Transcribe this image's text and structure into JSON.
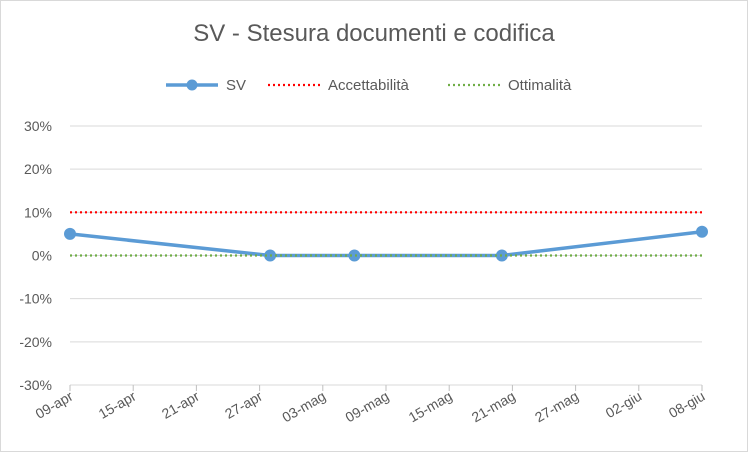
{
  "chart_data": {
    "type": "line",
    "title": "SV - Stesura documenti e codifica",
    "xlabel": "",
    "ylabel": "",
    "x_ticks": [
      "09-apr",
      "15-apr",
      "21-apr",
      "27-apr",
      "03-mag",
      "09-mag",
      "15-mag",
      "21-mag",
      "27-mag",
      "02-giu",
      "08-giu"
    ],
    "xlim": [
      "2019-04-09",
      "2019-06-08"
    ],
    "y_ticks": [
      "30%",
      "20%",
      "10%",
      "0%",
      "-10%",
      "-20%",
      "-30%"
    ],
    "ylim": [
      -0.3,
      0.3
    ],
    "grid": "horizontal",
    "legend_position": "top",
    "series": [
      {
        "name": "SV",
        "style": "solid-markers",
        "color": "#5b9bd5",
        "points": [
          {
            "x": "2019-04-09",
            "y": 0.05
          },
          {
            "x": "2019-04-28",
            "y": 0.0
          },
          {
            "x": "2019-05-06",
            "y": 0.0
          },
          {
            "x": "2019-05-20",
            "y": 0.0
          },
          {
            "x": "2019-06-08",
            "y": 0.055
          }
        ]
      },
      {
        "name": "Accettabilità",
        "style": "dotted",
        "color": "#ff0000",
        "points": [
          {
            "x": "2019-04-09",
            "y": 0.1
          },
          {
            "x": "2019-06-08",
            "y": 0.1
          }
        ]
      },
      {
        "name": "Ottimalità",
        "style": "dotted",
        "color": "#70ad47",
        "points": [
          {
            "x": "2019-04-09",
            "y": 0.0
          },
          {
            "x": "2019-06-08",
            "y": 0.0
          }
        ]
      }
    ]
  }
}
